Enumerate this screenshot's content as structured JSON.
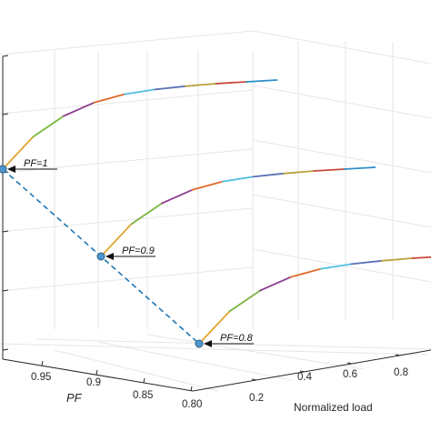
{
  "chart_data": {
    "type": "line",
    "projection": "3d",
    "xlabel": "Normalized load",
    "ylabel": "PF",
    "zlabel": "",
    "x_ticks": [
      "0.2",
      "0.4",
      "0.6",
      "0.8"
    ],
    "y_ticks": [
      "0.95",
      "0.9",
      "0.85",
      "0.80"
    ],
    "grid": true,
    "series": [
      {
        "pf": 1.0,
        "x": [
          0.0,
          0.1,
          0.2,
          0.3,
          0.4,
          0.5,
          0.6,
          0.7,
          0.8,
          0.9
        ],
        "z": [
          0.0,
          0.42,
          0.68,
          0.84,
          0.93,
          0.97,
          0.99,
          1.0,
          1.0,
          1.0
        ]
      },
      {
        "pf": 0.9,
        "x": [
          0.0,
          0.1,
          0.2,
          0.3,
          0.4,
          0.5,
          0.6,
          0.7,
          0.8,
          0.9
        ],
        "z": [
          0.0,
          0.42,
          0.68,
          0.84,
          0.93,
          0.97,
          0.99,
          1.0,
          1.0,
          1.0
        ]
      },
      {
        "pf": 0.8,
        "x": [
          0.0,
          0.1,
          0.2,
          0.3,
          0.4,
          0.5,
          0.6,
          0.7,
          0.8,
          0.9
        ],
        "z": [
          0.0,
          0.42,
          0.68,
          0.84,
          0.93,
          0.97,
          0.99,
          1.0,
          1.0,
          1.0
        ]
      }
    ],
    "annotations": [
      {
        "text": "PF=1",
        "pf": 1.0
      },
      {
        "text": "PF=0.9",
        "pf": 0.9
      },
      {
        "text": "PF=0.8",
        "pf": 0.8
      }
    ],
    "colors": {
      "segments": [
        "#e2a52f",
        "#7ab640",
        "#8c3e8e",
        "#df6b2c",
        "#4fbfe3",
        "#5a6fb4",
        "#b9a23a",
        "#c5473a",
        "#2c8fc8"
      ],
      "dashed_link": "#1f77b4",
      "marker_fill": "#4f97cf",
      "marker_edge": "#2a5f86",
      "axis": "#262626",
      "grid": "#e6e6e6"
    }
  }
}
